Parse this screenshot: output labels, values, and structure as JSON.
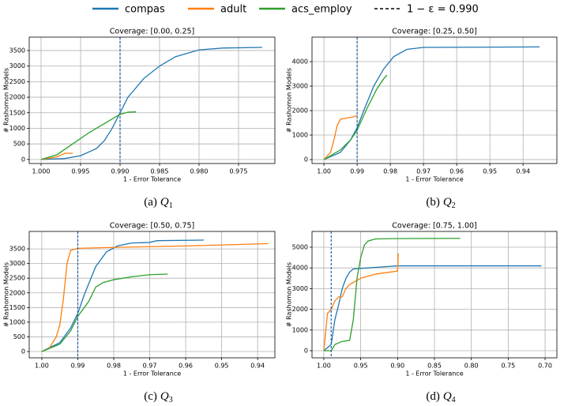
{
  "legend": {
    "threshold_label": "1 − ε = 0.990"
  },
  "chart_data": [
    {
      "type": "line",
      "title": "Coverage: [0.00, 0.25]",
      "xlabel": "1 - Error Tolerance",
      "ylabel": "# Rashomon Models",
      "caption": {
        "label": "(a)",
        "symbol": "Q",
        "subscript": "1"
      },
      "xlim": [
        1.0015,
        0.9704
      ],
      "ylim": [
        -130,
        3930
      ],
      "grid": true,
      "threshold": 0.99,
      "threshold_color": "#1f5fa8",
      "xticks": [
        {
          "value": 1.0,
          "label": "1.000"
        },
        0.995,
        {
          "value": 0.99,
          "label": "0.990"
        },
        0.985,
        {
          "value": 0.98,
          "label": "0.980"
        },
        0.975
      ],
      "yticks": [
        0,
        500,
        1000,
        1500,
        2000,
        2500,
        3000,
        3500
      ],
      "series": [
        {
          "name": "compas",
          "color": "#1f77b4",
          "x": [
            1.0,
            0.997,
            0.995,
            0.993,
            0.992,
            0.991,
            0.99,
            0.989,
            0.987,
            0.985,
            0.983,
            0.98,
            0.977,
            0.972
          ],
          "values": [
            0,
            30,
            120,
            350,
            600,
            1000,
            1500,
            2000,
            2600,
            3000,
            3300,
            3520,
            3580,
            3600
          ]
        },
        {
          "name": "adult",
          "color": "#ff7f0e",
          "x": [
            1.0,
            0.998,
            0.997,
            0.996
          ],
          "values": [
            0,
            80,
            200,
            200
          ]
        },
        {
          "name": "acs_employ",
          "color": "#2ca02c",
          "x": [
            1.0,
            0.998,
            0.996,
            0.994,
            0.992,
            0.99,
            0.989,
            0.988
          ],
          "values": [
            0,
            150,
            500,
            850,
            1150,
            1450,
            1520,
            1530
          ]
        }
      ]
    },
    {
      "type": "line",
      "title": "Coverage: [0.25, 0.50]",
      "xlabel": "1 - Error Tolerance",
      "ylabel": "# Rashomon Models",
      "caption": {
        "label": "(b)",
        "symbol": "Q",
        "subscript": "2"
      },
      "xlim": [
        1.0036,
        0.9298
      ],
      "ylim": [
        -160,
        5000
      ],
      "grid": true,
      "threshold": 0.99,
      "threshold_color": "#1f5fa8",
      "xticks": [
        {
          "value": 1.0,
          "label": "1.00"
        },
        0.99,
        0.98,
        0.97,
        0.96,
        0.95,
        0.94
      ],
      "yticks": [
        0,
        1000,
        2000,
        3000,
        4000
      ],
      "series": [
        {
          "name": "compas",
          "color": "#1f77b4",
          "x": [
            1.0,
            0.995,
            0.992,
            0.99,
            0.988,
            0.985,
            0.982,
            0.979,
            0.975,
            0.97,
            0.935
          ],
          "values": [
            0,
            300,
            800,
            1300,
            2000,
            3000,
            3700,
            4200,
            4500,
            4580,
            4600
          ]
        },
        {
          "name": "adult",
          "color": "#ff7f0e",
          "x": [
            1.0,
            0.998,
            0.997,
            0.996,
            0.995,
            0.993,
            0.991,
            0.99
          ],
          "values": [
            0,
            300,
            800,
            1400,
            1650,
            1700,
            1750,
            1800
          ]
        },
        {
          "name": "acs_employ",
          "color": "#2ca02c",
          "x": [
            1.0,
            0.995,
            0.992,
            0.99,
            0.987,
            0.984,
            0.982,
            0.981
          ],
          "values": [
            0,
            400,
            800,
            1200,
            2100,
            2900,
            3300,
            3450
          ]
        }
      ]
    },
    {
      "type": "line",
      "title": "Coverage: [0.50, 0.75]",
      "xlabel": "1 - Error Tolerance",
      "ylabel": "# Rashomon Models",
      "caption": {
        "label": "(c)",
        "symbol": "Q",
        "subscript": "3"
      },
      "xlim": [
        1.0035,
        0.9352
      ],
      "ylim": [
        -215,
        4095
      ],
      "grid": true,
      "threshold": 0.99,
      "threshold_color": "#1f5fa8",
      "xticks": [
        {
          "value": 1.0,
          "label": "1.00"
        },
        0.99,
        0.98,
        0.97,
        0.96,
        0.95,
        0.94
      ],
      "yticks": [
        0,
        500,
        1000,
        1500,
        2000,
        2500,
        3000,
        3500
      ],
      "series": [
        {
          "name": "compas",
          "color": "#1f77b4",
          "x": [
            1.0,
            0.995,
            0.992,
            0.99,
            0.988,
            0.985,
            0.982,
            0.979,
            0.975,
            0.97,
            0.968,
            0.955
          ],
          "values": [
            0,
            300,
            800,
            1300,
            2000,
            2900,
            3400,
            3600,
            3700,
            3720,
            3780,
            3800
          ]
        },
        {
          "name": "adult",
          "color": "#ff7f0e",
          "x": [
            1.0,
            0.998,
            0.996,
            0.995,
            0.994,
            0.993,
            0.992,
            0.99,
            0.98,
            0.96,
            0.945,
            0.937
          ],
          "values": [
            0,
            100,
            500,
            900,
            1800,
            3000,
            3450,
            3520,
            3550,
            3600,
            3650,
            3680
          ]
        },
        {
          "name": "acs_employ",
          "color": "#2ca02c",
          "x": [
            1.0,
            0.995,
            0.992,
            0.99,
            0.987,
            0.985,
            0.983,
            0.98,
            0.975,
            0.97,
            0.965
          ],
          "values": [
            0,
            250,
            700,
            1200,
            1700,
            2200,
            2350,
            2450,
            2550,
            2620,
            2640
          ]
        }
      ]
    },
    {
      "type": "line",
      "title": "Coverage: [0.75, 1.00]",
      "xlabel": "1 - Error Tolerance",
      "ylabel": "# Rashomon Models",
      "caption": {
        "label": "(d)",
        "symbol": "Q",
        "subscript": "4"
      },
      "xlim": [
        1.016,
        0.684
      ],
      "ylim": [
        -344,
        5763
      ],
      "grid": true,
      "threshold": 0.99,
      "threshold_color": "#1f5fa8",
      "xticks": [
        {
          "value": 1.0,
          "label": "1.00"
        },
        0.95,
        {
          "value": 0.9,
          "label": "0.90"
        },
        0.85,
        {
          "value": 0.8,
          "label": "0.80"
        },
        0.75,
        {
          "value": 0.7,
          "label": "0.70"
        }
      ],
      "yticks": [
        0,
        1000,
        2000,
        3000,
        4000,
        5000
      ],
      "series": [
        {
          "name": "compas",
          "color": "#1f77b4",
          "x": [
            1.0,
            0.99,
            0.985,
            0.98,
            0.975,
            0.97,
            0.965,
            0.96,
            0.94,
            0.92,
            0.9,
            0.705
          ],
          "values": [
            0,
            300,
            1500,
            2200,
            3000,
            3500,
            3800,
            3950,
            4000,
            4050,
            4100,
            4100
          ]
        },
        {
          "name": "adult",
          "color": "#ff7f0e",
          "x": [
            1.0,
            0.995,
            0.99,
            0.985,
            0.98,
            0.975,
            0.97,
            0.965,
            0.95,
            0.93,
            0.91,
            0.9,
            0.899
          ],
          "values": [
            0,
            1800,
            2000,
            2400,
            2600,
            2600,
            3000,
            3200,
            3500,
            3700,
            3800,
            3850,
            4700
          ]
        },
        {
          "name": "acs_employ",
          "color": "#2ca02c",
          "x": [
            1.0,
            0.99,
            0.985,
            0.975,
            0.965,
            0.96,
            0.955,
            0.95,
            0.945,
            0.94,
            0.93,
            0.9,
            0.815
          ],
          "values": [
            0,
            0,
            300,
            450,
            500,
            1500,
            3500,
            4500,
            5100,
            5300,
            5400,
            5420,
            5430
          ]
        }
      ]
    }
  ]
}
